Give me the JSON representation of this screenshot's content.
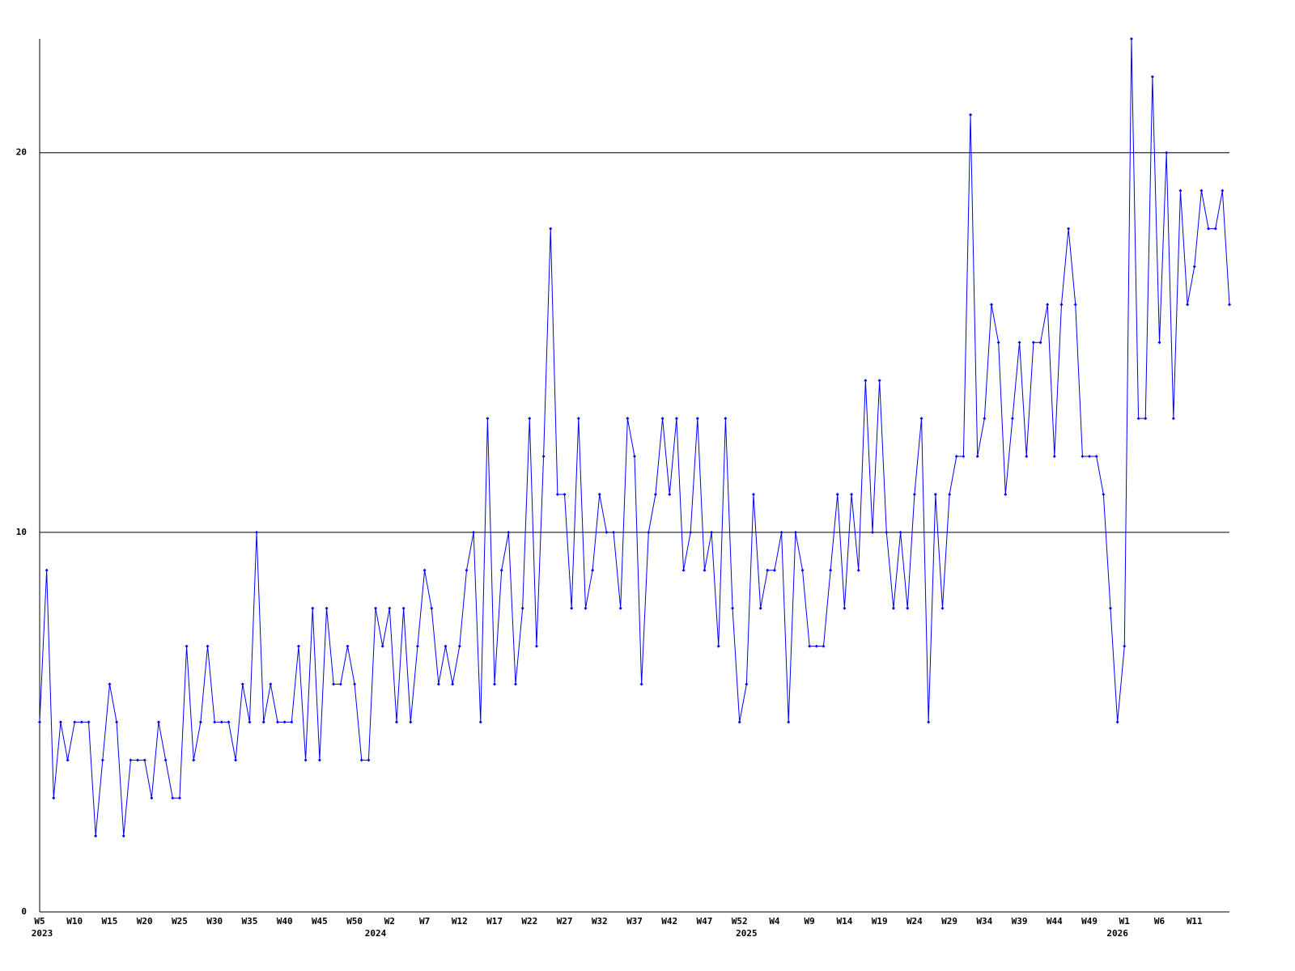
{
  "chart_data": {
    "type": "line",
    "categories": [
      "W5",
      null,
      null,
      null,
      null,
      "W10",
      null,
      null,
      null,
      null,
      "W15",
      null,
      null,
      null,
      null,
      "W20",
      null,
      null,
      null,
      null,
      "W25",
      null,
      null,
      null,
      null,
      "W30",
      null,
      null,
      null,
      null,
      "W35",
      null,
      null,
      null,
      null,
      "W40",
      null,
      null,
      null,
      null,
      "W45",
      null,
      null,
      null,
      null,
      "W50",
      null,
      null,
      null,
      null,
      "W2",
      null,
      null,
      null,
      null,
      "W7",
      null,
      null,
      null,
      null,
      "W12",
      null,
      null,
      null,
      null,
      "W17",
      null,
      null,
      null,
      null,
      "W22",
      null,
      null,
      null,
      null,
      "W27",
      null,
      null,
      null,
      null,
      "W32",
      null,
      null,
      null,
      null,
      "W37",
      null,
      null,
      null,
      null,
      "W42",
      null,
      null,
      null,
      null,
      "W47",
      null,
      null,
      null,
      null,
      "W52",
      null,
      null,
      null,
      null,
      "W4",
      null,
      null,
      null,
      null,
      "W9",
      null,
      null,
      null,
      null,
      "W14",
      null,
      null,
      null,
      null,
      "W19",
      null,
      null,
      null,
      null,
      "W24",
      null,
      null,
      null,
      null,
      "W29",
      null,
      null,
      null,
      null,
      "W34",
      null,
      null,
      null,
      null,
      "W39",
      null,
      null,
      null,
      null,
      "W44",
      null,
      null,
      null,
      null,
      "W49",
      null,
      null,
      null,
      null,
      "W1",
      null,
      null,
      null,
      null,
      "W6",
      null,
      null,
      null,
      null,
      "W11",
      null,
      null,
      null,
      null,
      null
    ],
    "year_labels": [
      "2023",
      null,
      null,
      null,
      null,
      null,
      null,
      null,
      null,
      null,
      null,
      null,
      null,
      null,
      null,
      null,
      null,
      null,
      null,
      null,
      null,
      null,
      null,
      null,
      null,
      null,
      null,
      null,
      null,
      null,
      null,
      null,
      null,
      null,
      null,
      null,
      null,
      null,
      null,
      null,
      null,
      null,
      null,
      null,
      null,
      null,
      null,
      null,
      "2024",
      null,
      null,
      null,
      null,
      null,
      null,
      null,
      null,
      null,
      null,
      null,
      null,
      null,
      null,
      null,
      null,
      null,
      null,
      null,
      null,
      null,
      null,
      null,
      null,
      null,
      null,
      null,
      null,
      null,
      null,
      null,
      null,
      null,
      null,
      null,
      null,
      null,
      null,
      null,
      null,
      null,
      null,
      null,
      null,
      null,
      null,
      null,
      null,
      null,
      null,
      null,
      null,
      "2025",
      null,
      null,
      null,
      null,
      null,
      null,
      null,
      null,
      null,
      null,
      null,
      null,
      null,
      null,
      null,
      null,
      null,
      null,
      null,
      null,
      null,
      null,
      null,
      null,
      null,
      null,
      null,
      null,
      null,
      null,
      null,
      null,
      null,
      null,
      null,
      null,
      null,
      null,
      null,
      null,
      null,
      null,
      null,
      null,
      null,
      null,
      null,
      null,
      null,
      null,
      null,
      null,
      "2026",
      null,
      null,
      null,
      null,
      null,
      null,
      null,
      null,
      null,
      null,
      null,
      null,
      null,
      null,
      null,
      null
    ],
    "values": [
      5,
      9,
      3,
      5,
      4,
      5,
      5,
      5,
      2,
      4,
      6,
      5,
      2,
      4,
      4,
      4,
      3,
      5,
      4,
      3,
      3,
      7,
      4,
      5,
      7,
      5,
      5,
      5,
      4,
      6,
      5,
      10,
      5,
      6,
      5,
      5,
      5,
      7,
      4,
      8,
      4,
      8,
      6,
      6,
      7,
      6,
      4,
      4,
      8,
      7,
      8,
      5,
      8,
      5,
      7,
      9,
      8,
      6,
      7,
      6,
      7,
      9,
      10,
      5,
      13,
      6,
      9,
      10,
      6,
      8,
      13,
      7,
      12,
      18,
      11,
      11,
      8,
      13,
      8,
      9,
      11,
      10,
      10,
      8,
      13,
      12,
      6,
      10,
      11,
      13,
      11,
      13,
      9,
      10,
      13,
      9,
      10,
      7,
      13,
      8,
      5,
      6,
      11,
      8,
      9,
      9,
      10,
      5,
      10,
      9,
      7,
      7,
      7,
      9,
      11,
      8,
      11,
      9,
      14,
      10,
      14,
      10,
      8,
      10,
      8,
      11,
      13,
      5,
      11,
      8,
      11,
      12,
      12,
      21,
      12,
      13,
      16,
      15,
      11,
      13,
      15,
      12,
      15,
      15,
      16,
      12,
      16,
      18,
      16,
      12,
      12,
      12,
      11,
      8,
      5,
      7,
      23,
      13,
      13,
      22,
      15,
      20,
      13,
      19,
      16,
      17,
      19,
      18,
      18,
      19,
      16
    ],
    "color": "#0000ff",
    "ylim": [
      0,
      23
    ],
    "yticks": [
      0,
      10,
      20
    ],
    "grid": true
  }
}
